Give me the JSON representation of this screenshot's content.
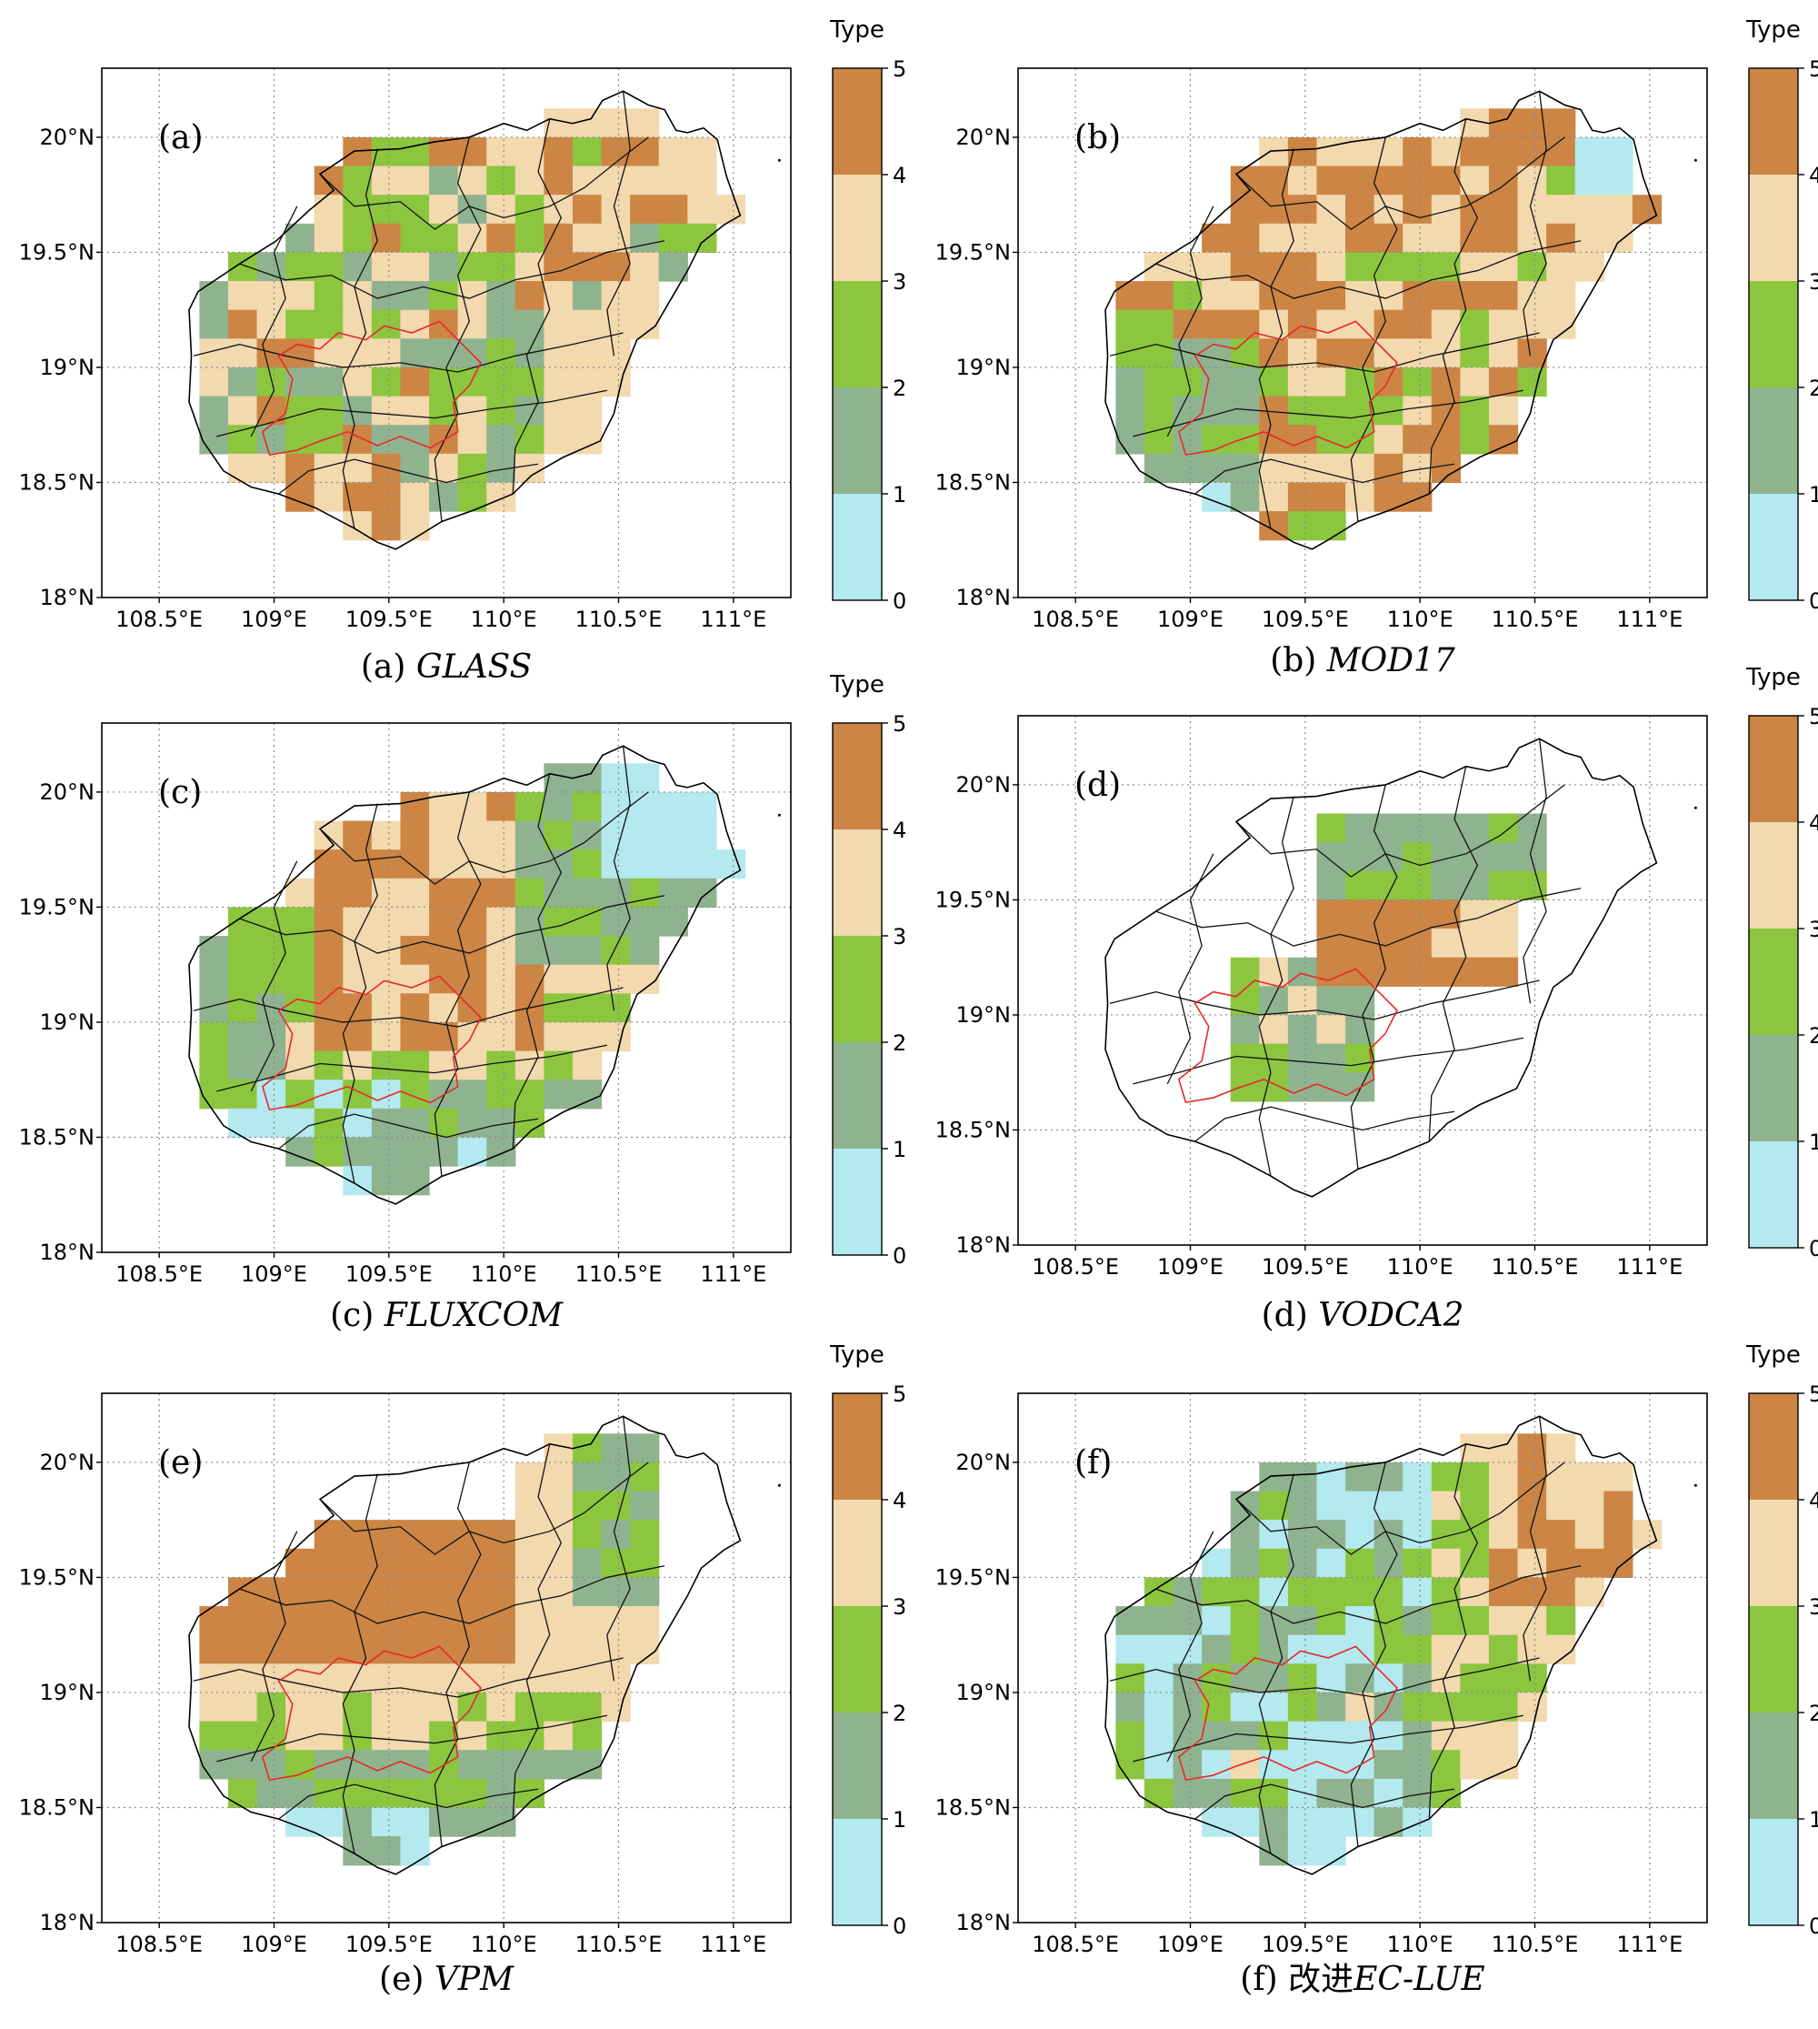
{
  "legend": {
    "title": "Type",
    "ticks": [
      "0",
      "1",
      "2",
      "3",
      "4",
      "5"
    ],
    "classes": [
      {
        "color": "#b3e9ef"
      },
      {
        "color": "#8fb38f"
      },
      {
        "color": "#8cc63f"
      },
      {
        "color": "#f2d9ae"
      },
      {
        "color": "#cc8544"
      }
    ]
  },
  "axes": {
    "lon_ticks": [
      "108.5°E",
      "109°E",
      "109.5°E",
      "110°E",
      "110.5°E",
      "111°E"
    ],
    "lat_ticks": [
      "18°N",
      "18.5°N",
      "19°N",
      "19.5°N",
      "20°N"
    ],
    "lon_values": [
      108.5,
      109,
      109.5,
      110,
      110.5,
      111
    ],
    "lat_values": [
      18,
      18.5,
      19,
      19.5,
      20
    ],
    "lon_range": [
      108.25,
      111.25
    ],
    "lat_range": [
      18,
      20.3
    ],
    "grid": "dotted"
  },
  "colors": {
    "coast": "#000000",
    "county_border": "#111111",
    "reserve_border": "#e8282b"
  },
  "panels": [
    {
      "tag": "(a)",
      "caption_prefix": "(a) ",
      "caption_name": "GLASS"
    },
    {
      "tag": "(b)",
      "caption_prefix": "(b)  ",
      "caption_name": "MOD17"
    },
    {
      "tag": "(c)",
      "caption_prefix": "(c)  ",
      "caption_name": "FLUXCOM"
    },
    {
      "tag": "(d)",
      "caption_prefix": "(d)  ",
      "caption_name": "VODCA2"
    },
    {
      "tag": "(e)",
      "caption_prefix": "(e)  ",
      "caption_name": "VPM"
    },
    {
      "tag": "(f)",
      "caption_prefix": "(f)  改进",
      "caption_name": "EC-LUE"
    }
  ]
}
